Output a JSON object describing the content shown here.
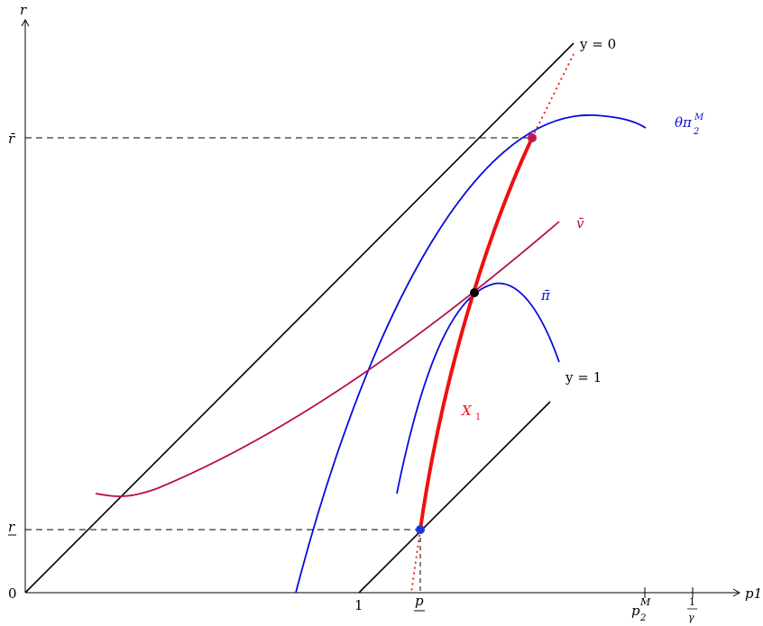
{
  "axes": {
    "y_label": "r",
    "x_label": "p1",
    "origin_label": "0",
    "y_ticks": {
      "r_bar": "r̄",
      "r_under": "r"
    },
    "x_ticks": {
      "one": "1",
      "p_under": "p",
      "p2M": "p",
      "p2M_sup": "M",
      "p2M_sub": "2",
      "gamma_num": "1",
      "gamma_den": "γ"
    }
  },
  "curve_labels": {
    "y0": "y = 0",
    "y1": "y = 1",
    "theta_pi": "θπ",
    "theta_pi_sup": "M",
    "theta_pi_sub": "2",
    "v_bar": "v̄",
    "pi_bar": "π̄",
    "x1": "X",
    "x1_sub": "1"
  },
  "colors": {
    "black": "#000000",
    "blue": "#0a0adf",
    "crimson": "#b4104c",
    "red": "#ee1111",
    "dot_blue": "#1a3ad8",
    "dot_crimson": "#c01850"
  }
}
